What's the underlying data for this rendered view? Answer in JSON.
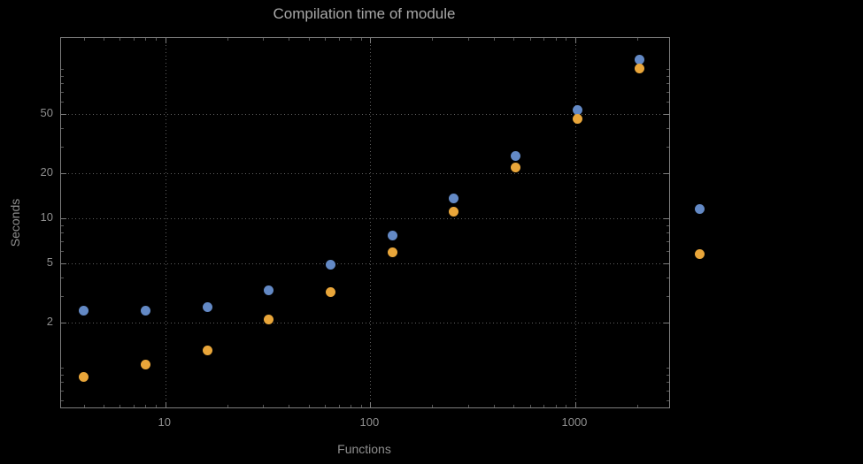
{
  "colors": {
    "background": "#000000",
    "frame": "#7d7d7d",
    "grid": "#5f5f5f",
    "title_text": "#a8a8a8",
    "tick_text": "#8f8f8f",
    "series_blue": "#6389c5",
    "series_orange": "#e9a63a"
  },
  "chart_data": {
    "type": "scatter",
    "title": "Compilation time of module",
    "xlabel": "Functions",
    "ylabel": "Seconds",
    "x_scale": "log",
    "y_scale": "log",
    "xlim": [
      3.1,
      2870
    ],
    "ylim": [
      0.54,
      161
    ],
    "x_ticks": [
      10,
      100,
      1000
    ],
    "y_ticks": [
      2,
      5,
      10,
      20,
      50
    ],
    "grid": "dotted",
    "legend_position": "outside-right",
    "x": [
      4,
      8,
      16,
      32,
      64,
      128,
      256,
      512,
      1024,
      2048
    ],
    "series": [
      {
        "name": "blue",
        "color": "#6389c5",
        "values": [
          2.4,
          2.4,
          2.55,
          3.3,
          4.9,
          7.7,
          13.5,
          26,
          53,
          115
        ]
      },
      {
        "name": "orange",
        "color": "#e9a63a",
        "values": [
          0.87,
          1.05,
          1.3,
          2.1,
          3.2,
          5.9,
          11,
          22,
          46,
          100
        ]
      }
    ],
    "legend_markers": [
      {
        "name": "blue",
        "color": "#6389c5",
        "seconds": 11.3
      },
      {
        "name": "orange",
        "color": "#e9a63a",
        "seconds": 5.7
      }
    ]
  }
}
